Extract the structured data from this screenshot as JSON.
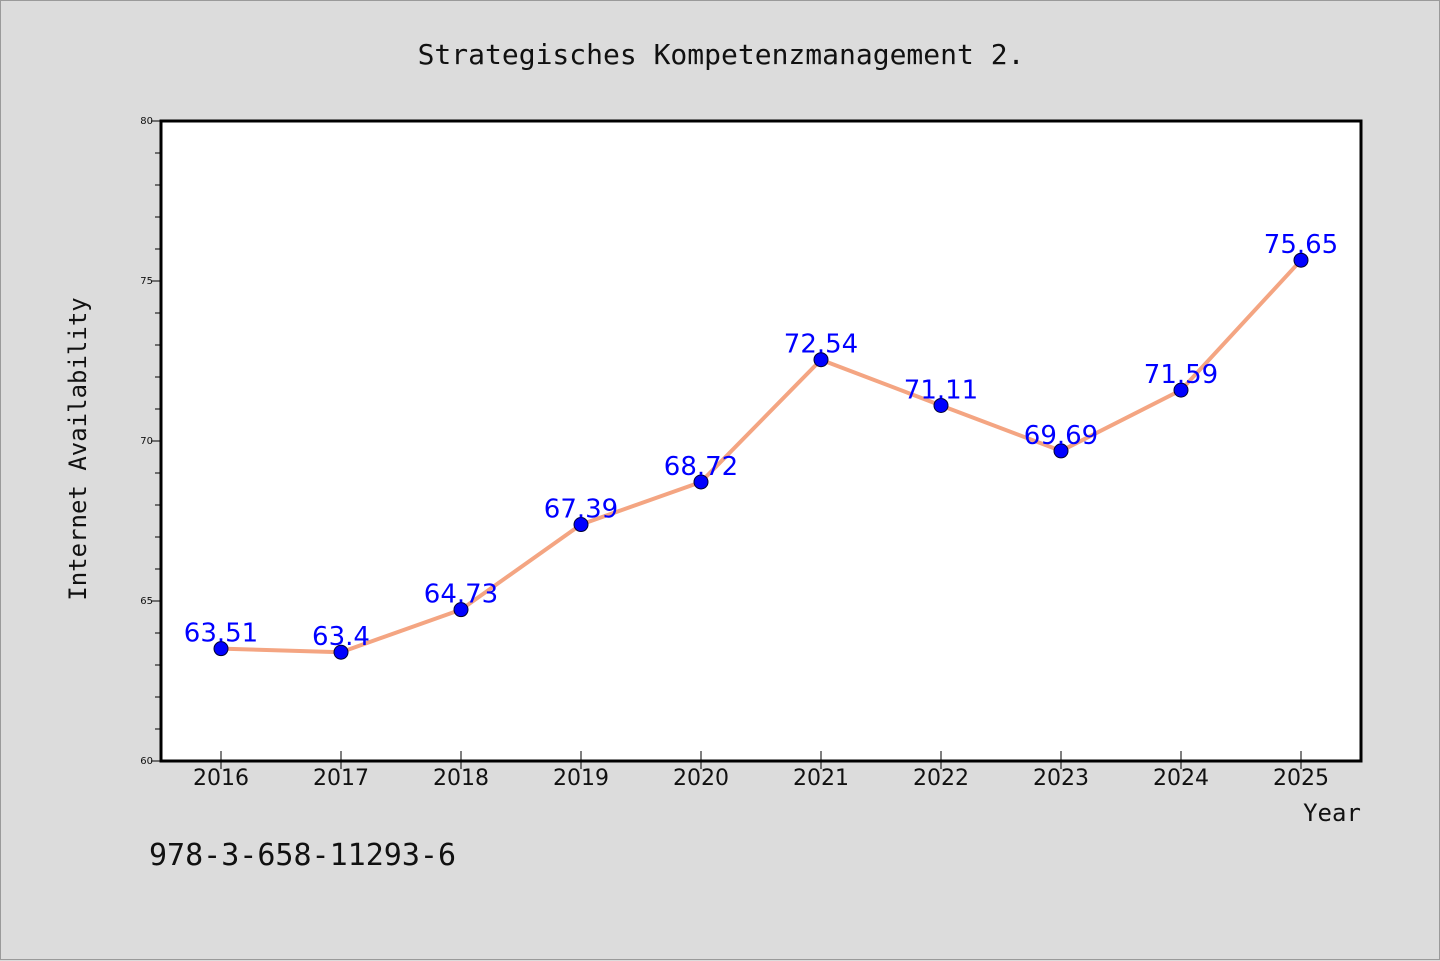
{
  "chart_data": {
    "type": "line",
    "title": "Strategisches Kompetenzmanagement 2.",
    "xlabel": "Year",
    "ylabel": "Internet Availability",
    "categories": [
      "2016",
      "2017",
      "2018",
      "2019",
      "2020",
      "2021",
      "2022",
      "2023",
      "2024",
      "2025"
    ],
    "series": [
      {
        "values": [
          63.51,
          63.4,
          64.73,
          67.39,
          68.72,
          72.54,
          71.11,
          69.69,
          71.59,
          75.65
        ],
        "data_labels": [
          "63.51",
          "63.4",
          "64.73",
          "67.39",
          "68.72",
          "72.54",
          "71.11",
          "69.69",
          "71.59",
          "75.65"
        ],
        "line_color": "#f4a582",
        "marker_color": "#0000ff",
        "label_color": "#0000ff"
      }
    ],
    "ylim": [
      60,
      80
    ],
    "yticks": [
      "60",
      "65",
      "70",
      "75",
      "80"
    ],
    "grid": false,
    "legend": "none",
    "annotation": "978-3-658-11293-6"
  }
}
